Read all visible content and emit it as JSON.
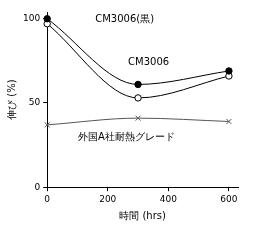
{
  "chart_data": {
    "type": "line",
    "x_label": "時間 (hrs)",
    "y_label": "伸び (%)",
    "x": [
      0,
      300,
      600
    ],
    "xlim": [
      0,
      630
    ],
    "xticks": [
      0,
      200,
      400,
      600
    ],
    "ylim": [
      0,
      104
    ],
    "yticks": [
      0,
      50,
      100
    ],
    "grid": false,
    "series": [
      {
        "name": "CM3006(黒)",
        "color": "#000000",
        "marker": "filled_circle",
        "line_style": "solid",
        "values": [
          100,
          61,
          69
        ]
      },
      {
        "name": "CM3006",
        "color": "#000000",
        "marker": "open_circle",
        "line_style": "solid",
        "values": [
          97,
          53,
          66
        ]
      },
      {
        "name": "外国A社耐熱グレード",
        "color": "#555555",
        "marker": "x",
        "line_style": "solid",
        "values": [
          37,
          41,
          39
        ]
      }
    ]
  }
}
